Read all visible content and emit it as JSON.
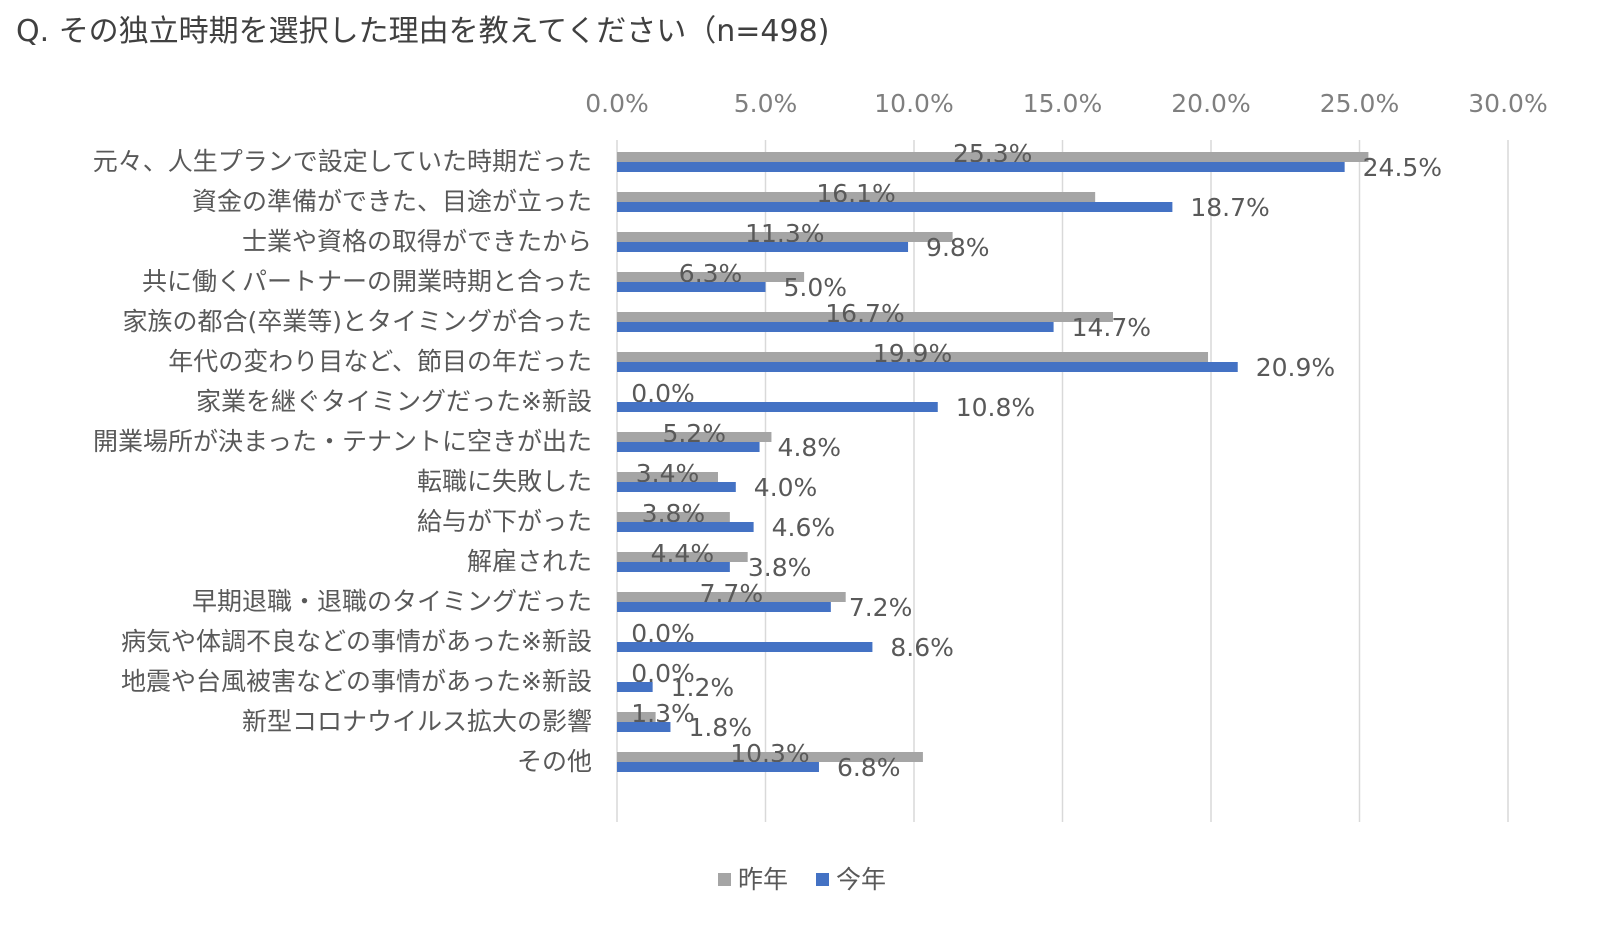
{
  "chart_data": {
    "type": "bar",
    "orientation": "horizontal",
    "title": "Q. その独立時期を選択した理由を教えてください（n=498)",
    "xlim": [
      0,
      30
    ],
    "xticks": [
      "0.0%",
      "5.0%",
      "10.0%",
      "15.0%",
      "20.0%",
      "25.0%",
      "30.0%"
    ],
    "xtick_values": [
      0,
      5,
      10,
      15,
      20,
      25,
      30
    ],
    "grid": true,
    "legend_position": "bottom",
    "categories": [
      "元々、人生プランで設定していた時期だった",
      "資金の準備ができた、目途が立った",
      "士業や資格の取得ができたから",
      "共に働くパートナーの開業時期と合った",
      "家族の都合(卒業等)とタイミングが合った",
      "年代の変わり目など、節目の年だった",
      "家業を継ぐタイミングだった※新設",
      "開業場所が決まった・テナントに空きが出た",
      "転職に失敗した",
      "給与が下がった",
      "解雇された",
      "早期退職・退職のタイミングだった",
      "病気や体調不良などの事情があった※新設",
      "地震や台風被害などの事情があった※新設",
      "新型コロナウイルス拡大の影響",
      "その他"
    ],
    "series": [
      {
        "name": "昨年",
        "color": "#a5a5a5",
        "values": [
          25.3,
          16.1,
          11.3,
          6.3,
          16.7,
          19.9,
          0.0,
          5.2,
          3.4,
          3.8,
          4.4,
          7.7,
          0.0,
          0.0,
          1.3,
          10.3
        ],
        "labels": [
          "25.3%",
          "16.1%",
          "11.3%",
          "6.3%",
          "16.7%",
          "19.9%",
          "0.0%",
          "5.2%",
          "3.4%",
          "3.8%",
          "4.4%",
          "7.7%",
          "0.0%",
          "0.0%",
          "1.3%",
          "10.3%"
        ]
      },
      {
        "name": "今年",
        "color": "#4472c4",
        "values": [
          24.5,
          18.7,
          9.8,
          5.0,
          14.7,
          20.9,
          10.8,
          4.8,
          4.0,
          4.6,
          3.8,
          7.2,
          8.6,
          1.2,
          1.8,
          6.8
        ],
        "labels": [
          "24.5%",
          "18.7%",
          "9.8%",
          "5.0%",
          "14.7%",
          "20.9%",
          "10.8%",
          "4.8%",
          "4.0%",
          "4.6%",
          "3.8%",
          "7.2%",
          "8.6%",
          "1.2%",
          "1.8%",
          "6.8%"
        ]
      }
    ]
  }
}
